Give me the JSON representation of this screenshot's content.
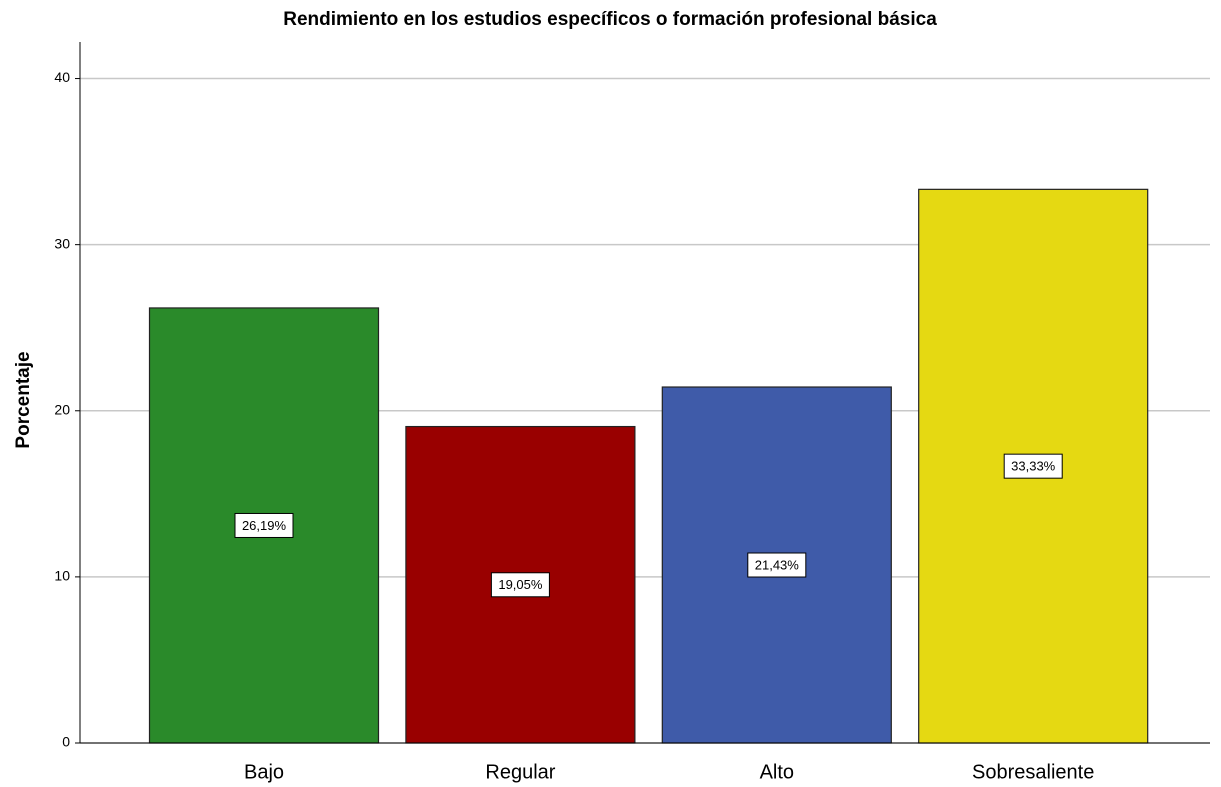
{
  "chart_data": {
    "type": "bar",
    "title": "Rendimiento en los estudios específicos o formación profesional básica",
    "y_label": "Porcentaje",
    "categories": [
      "Bajo",
      "Regular",
      "Alto",
      "Sobresaliente"
    ],
    "values": [
      26.19,
      19.05,
      21.43,
      33.33
    ],
    "value_labels": [
      "26,19%",
      "19,05%",
      "21,43%",
      "33,33%"
    ],
    "colors": [
      "#2a8a2a",
      "#990000",
      "#3f5ba9",
      "#e5d912"
    ],
    "ylim": [
      0,
      42.2
    ],
    "yticks": [
      0,
      10,
      20,
      30,
      40
    ],
    "grid": true
  }
}
